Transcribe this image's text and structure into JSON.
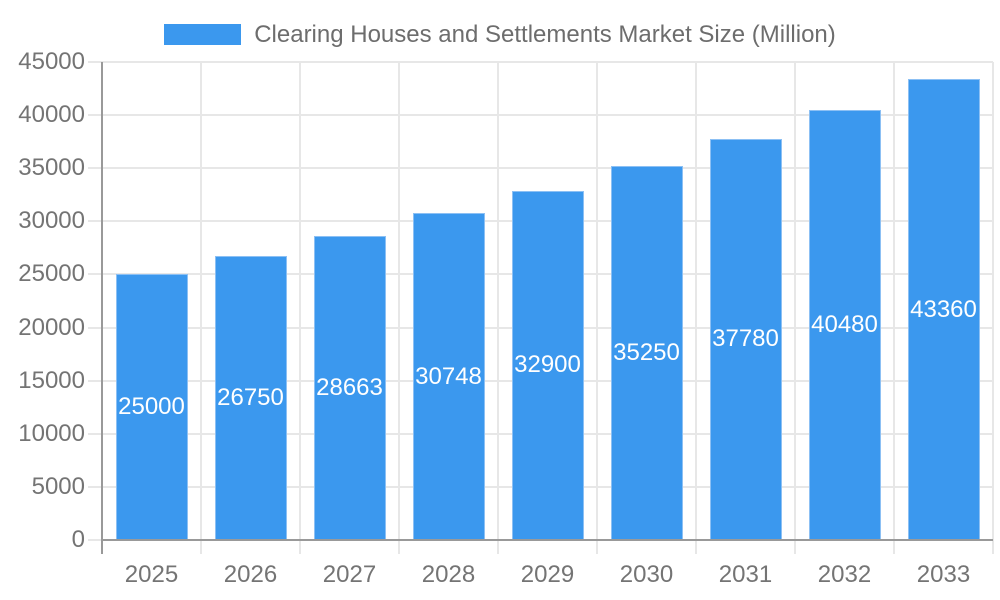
{
  "chart_data": {
    "type": "bar",
    "title": "Clearing Houses and Settlements Market Size (Million)",
    "legend_position": "top",
    "categories": [
      "2025",
      "2026",
      "2027",
      "2028",
      "2029",
      "2030",
      "2031",
      "2032",
      "2033"
    ],
    "values": [
      25000,
      26750,
      28663,
      30748,
      32900,
      35250,
      37780,
      40480,
      43360
    ],
    "xlabel": "",
    "ylabel": "",
    "ylim": [
      0,
      45000
    ],
    "yticks": [
      0,
      5000,
      10000,
      15000,
      20000,
      25000,
      30000,
      35000,
      40000,
      45000
    ],
    "grid": true,
    "bar_labels_inside": true,
    "colors": {
      "bar": "#3b98ee",
      "bar_edge": "#8cc0f4",
      "axis_line": "#999999",
      "grid_line": "#e7e7e7",
      "tick_label": "#747474",
      "title_text": "#6d6d6d",
      "value_label": "#ffffff",
      "background": "#ffffff"
    }
  }
}
